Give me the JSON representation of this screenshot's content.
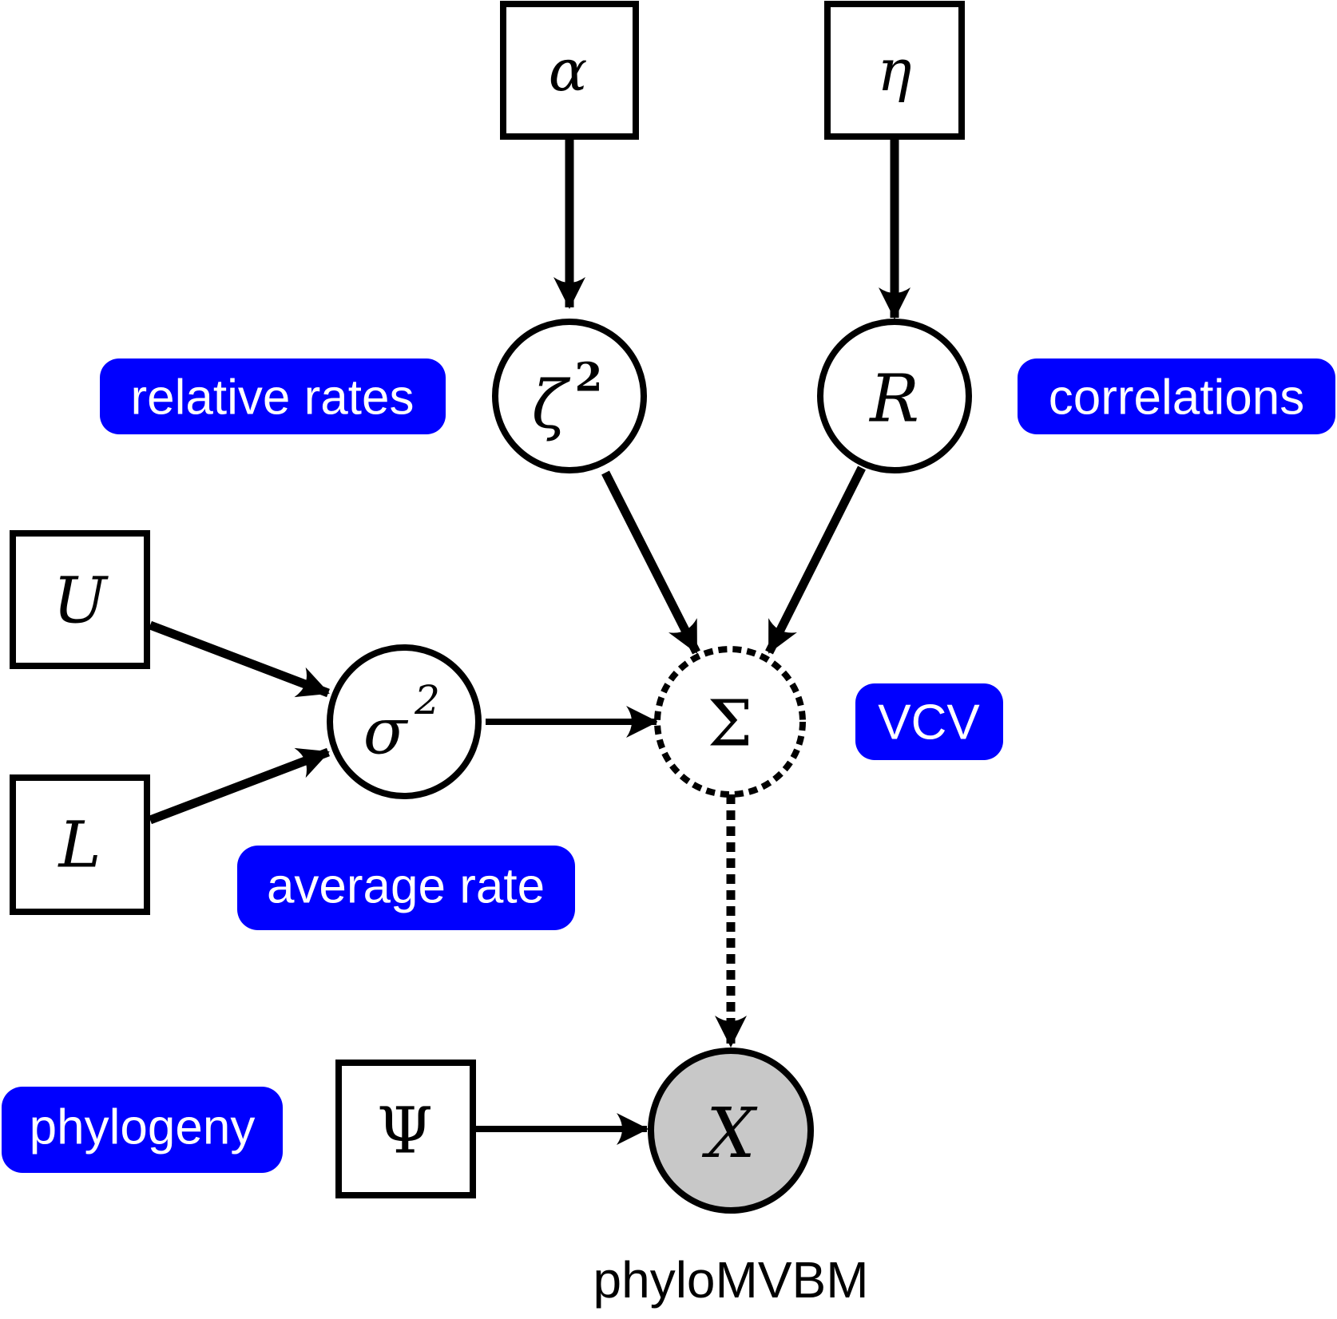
{
  "diagram": {
    "caption": "phyloMVBM",
    "nodes": {
      "alpha": {
        "symbol": "α",
        "kind": "constant"
      },
      "eta": {
        "symbol": "η",
        "kind": "constant"
      },
      "zeta2": {
        "symbol": "ζ",
        "sup": "2",
        "kind": "stochastic"
      },
      "R": {
        "symbol": "R",
        "kind": "stochastic"
      },
      "U": {
        "symbol": "U",
        "kind": "constant"
      },
      "L": {
        "symbol": "L",
        "kind": "constant"
      },
      "sigma2": {
        "symbol": "σ",
        "sup": "2",
        "kind": "stochastic"
      },
      "Sigma": {
        "symbol": "Σ",
        "kind": "deterministic"
      },
      "Psi": {
        "symbol": "Ψ",
        "kind": "constant"
      },
      "X": {
        "symbol": "X",
        "kind": "observed"
      }
    },
    "tags": {
      "relative_rates": "relative rates",
      "correlations": "correlations",
      "vcv": "VCV",
      "average_rate": "average rate",
      "phylogeny": "phylogeny"
    },
    "colors": {
      "tag_fill": "#0000ff",
      "tag_text": "#ffffff",
      "observed_fill": "#c8c8c8",
      "stroke": "#000000"
    }
  }
}
